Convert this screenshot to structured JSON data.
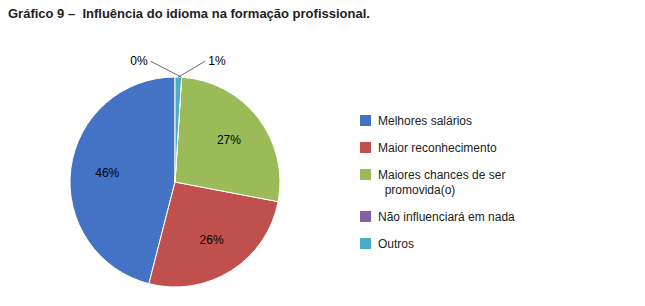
{
  "chart_data": {
    "type": "pie",
    "title": "Gráfico 9 –  Influência do idioma na formação profissional.",
    "categories": [
      "Melhores salários",
      "Maior reconhecimento",
      "Maiores chances de ser\n  promovida(o)",
      "Não influenciará em nada",
      "Outros"
    ],
    "values": [
      46,
      26,
      27,
      0,
      1
    ],
    "value_labels": [
      "46%",
      "26%",
      "27%",
      "0%",
      "1%"
    ],
    "colors": [
      "#4472C4",
      "#C0504D",
      "#9BBB59",
      "#8064A2",
      "#4BACC6"
    ],
    "data_labels": true,
    "legend": "right"
  }
}
